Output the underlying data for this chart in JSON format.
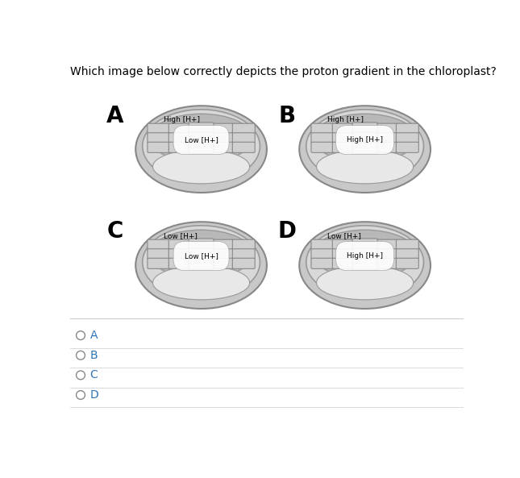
{
  "title": "Which image below correctly depicts the proton gradient in the chloroplast?",
  "title_color": "#000000",
  "title_fontsize": 10,
  "bg_color": "#ffffff",
  "panels": [
    {
      "label": "A",
      "outer_label": "High [H+]",
      "inner_label": "Low [H+]"
    },
    {
      "label": "B",
      "outer_label": "High [H+]",
      "inner_label": "High [H+]"
    },
    {
      "label": "C",
      "outer_label": "Low [H+]",
      "inner_label": "Low [H+]"
    },
    {
      "label": "D",
      "outer_label": "Low [H+]",
      "inner_label": "High [H+]"
    }
  ],
  "choices": [
    "A",
    "B",
    "C",
    "D"
  ],
  "choice_color": "#2e74b5",
  "outer_fill": "#c8c8c8",
  "outer_edge": "#888888",
  "inner_fill": "#d8d8d8",
  "inner_edge": "#999999",
  "stroma_fill": "#e8e8e8",
  "thylakoid_region_fill": "#b8b8b8",
  "thylakoid_fill": "#d0d0d0",
  "thylakoid_edge": "#888888",
  "bottom_lobe_fill": "#e0e0e0"
}
